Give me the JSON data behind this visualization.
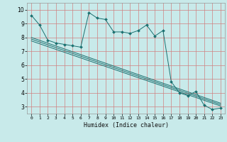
{
  "xlabel": "Humidex (Indice chaleur)",
  "bg_color": "#c8eaea",
  "grid_color": "#d08080",
  "line_color": "#1a7070",
  "xlim": [
    -0.5,
    23.5
  ],
  "ylim": [
    2.5,
    10.5
  ],
  "yticks": [
    3,
    4,
    5,
    6,
    7,
    8,
    9,
    10
  ],
  "xticks": [
    0,
    1,
    2,
    3,
    4,
    5,
    6,
    7,
    8,
    9,
    10,
    11,
    12,
    13,
    14,
    15,
    16,
    17,
    18,
    19,
    20,
    21,
    22,
    23
  ],
  "series": [
    [
      0,
      9.6
    ],
    [
      1,
      8.9
    ],
    [
      2,
      7.8
    ],
    [
      3,
      7.6
    ],
    [
      4,
      7.5
    ],
    [
      5,
      7.4
    ],
    [
      6,
      7.3
    ],
    [
      7,
      9.8
    ],
    [
      8,
      9.4
    ],
    [
      9,
      9.3
    ],
    [
      10,
      8.4
    ],
    [
      11,
      8.4
    ],
    [
      12,
      8.3
    ],
    [
      13,
      8.5
    ],
    [
      14,
      8.9
    ],
    [
      15,
      8.1
    ],
    [
      16,
      8.5
    ],
    [
      17,
      4.8
    ],
    [
      18,
      4.0
    ],
    [
      19,
      3.8
    ],
    [
      20,
      4.1
    ],
    [
      21,
      3.1
    ],
    [
      22,
      2.8
    ],
    [
      23,
      2.9
    ]
  ],
  "linear1": [
    [
      0,
      7.75
    ],
    [
      23,
      3.05
    ]
  ],
  "linear2": [
    [
      0,
      7.88
    ],
    [
      23,
      3.15
    ]
  ],
  "linear3": [
    [
      0,
      8.0
    ],
    [
      23,
      3.25
    ]
  ]
}
